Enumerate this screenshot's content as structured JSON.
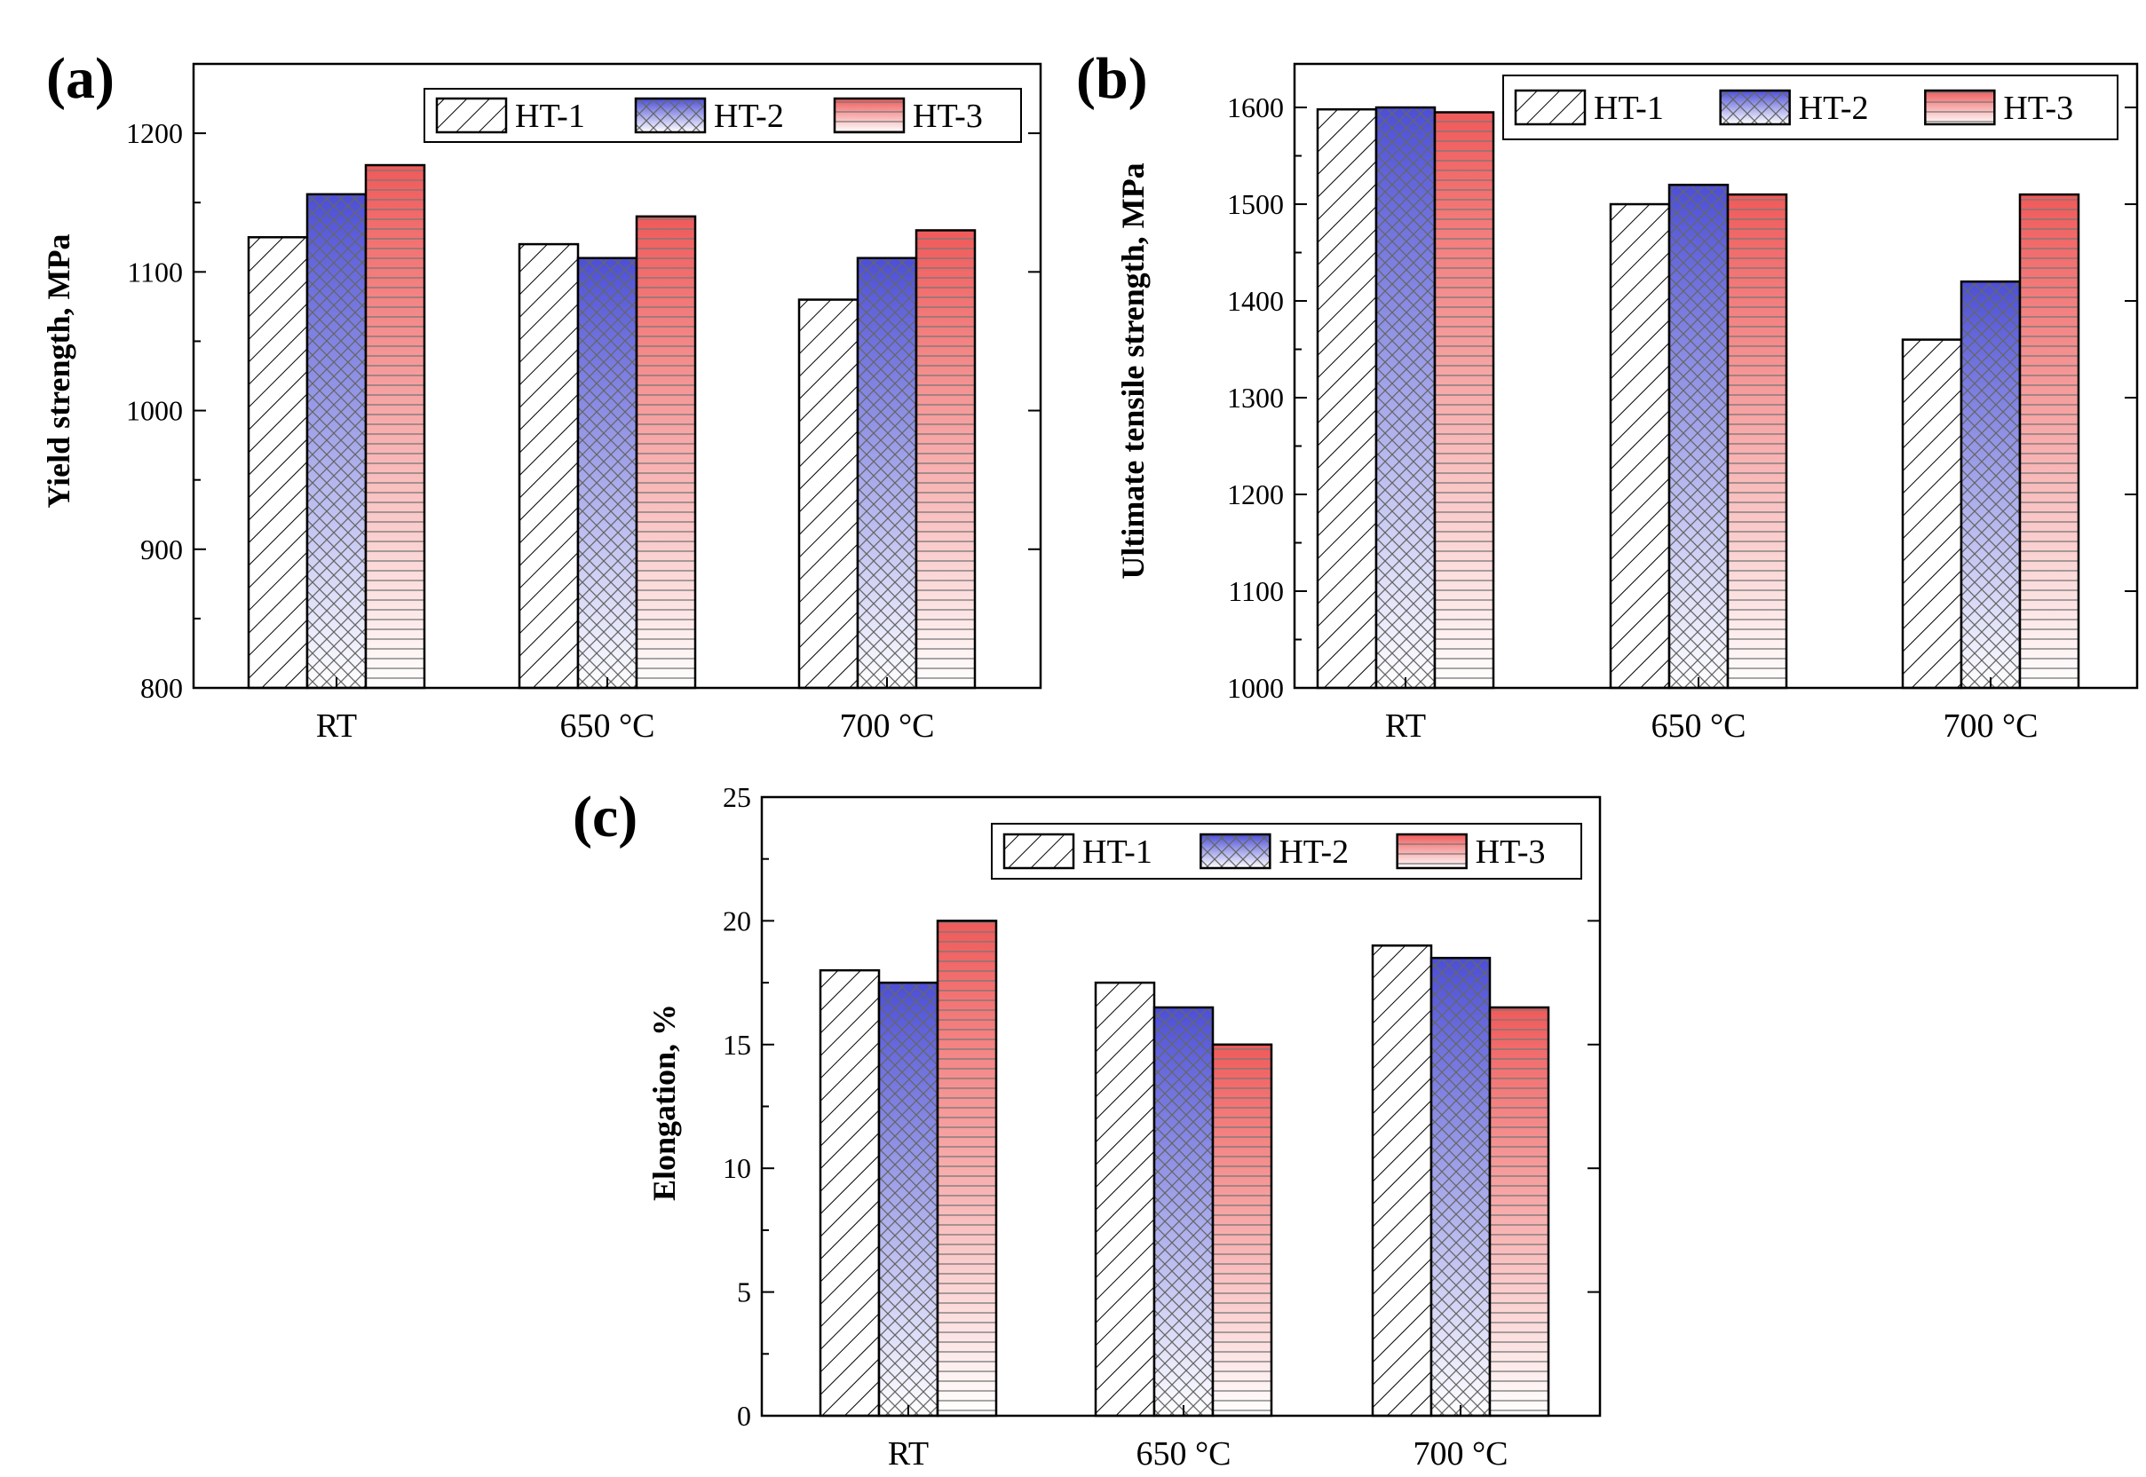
{
  "figure": {
    "legend_series": [
      "HT-1",
      "HT-2",
      "HT-3"
    ],
    "colors": {
      "HT-1": "#ffffff",
      "HT-2": "#4c4fd6",
      "HT-3": "#f05a5a",
      "outline": "#000000"
    },
    "patterns": {
      "HT-1": "diagonal-hatch",
      "HT-2": "crosshatch-gradient",
      "HT-3": "horizontal-lines-gradient"
    }
  },
  "chart_data": [
    {
      "panel": "(a)",
      "type": "bar",
      "categories": [
        "RT",
        "650 °C",
        "700 °C"
      ],
      "series": [
        {
          "name": "HT-1",
          "values": [
            1125,
            1120,
            1080
          ]
        },
        {
          "name": "HT-2",
          "values": [
            1156,
            1110,
            1110
          ]
        },
        {
          "name": "HT-3",
          "values": [
            1177,
            1140,
            1130
          ]
        }
      ],
      "ylabel": "Yield strength, MPa",
      "ylim": [
        800,
        1250
      ],
      "yticks": [
        800,
        900,
        1000,
        1100,
        1200
      ],
      "legend_position": "top-right",
      "grid": false
    },
    {
      "panel": "(b)",
      "type": "bar",
      "categories": [
        "RT",
        "650 °C",
        "700 °C"
      ],
      "series": [
        {
          "name": "HT-1",
          "values": [
            1598,
            1500,
            1360
          ]
        },
        {
          "name": "HT-2",
          "values": [
            1600,
            1520,
            1420
          ]
        },
        {
          "name": "HT-3",
          "values": [
            1595,
            1510,
            1510
          ]
        }
      ],
      "ylabel": "Ultimate tensile strength, MPa",
      "ylim": [
        1000,
        1645
      ],
      "yticks": [
        1000,
        1100,
        1200,
        1300,
        1400,
        1500,
        1600
      ],
      "legend_position": "top-right",
      "grid": false
    },
    {
      "panel": "(c)",
      "type": "bar",
      "categories": [
        "RT",
        "650 °C",
        "700 °C"
      ],
      "series": [
        {
          "name": "HT-1",
          "values": [
            18,
            17.5,
            19
          ]
        },
        {
          "name": "HT-2",
          "values": [
            17.5,
            16.5,
            18.5
          ]
        },
        {
          "name": "HT-3",
          "values": [
            20,
            15,
            16.5
          ]
        }
      ],
      "ylabel": "Elongation, %",
      "ylim": [
        0,
        25
      ],
      "yticks": [
        0,
        5,
        10,
        15,
        20,
        25
      ],
      "legend_position": "top-right",
      "grid": false
    }
  ]
}
